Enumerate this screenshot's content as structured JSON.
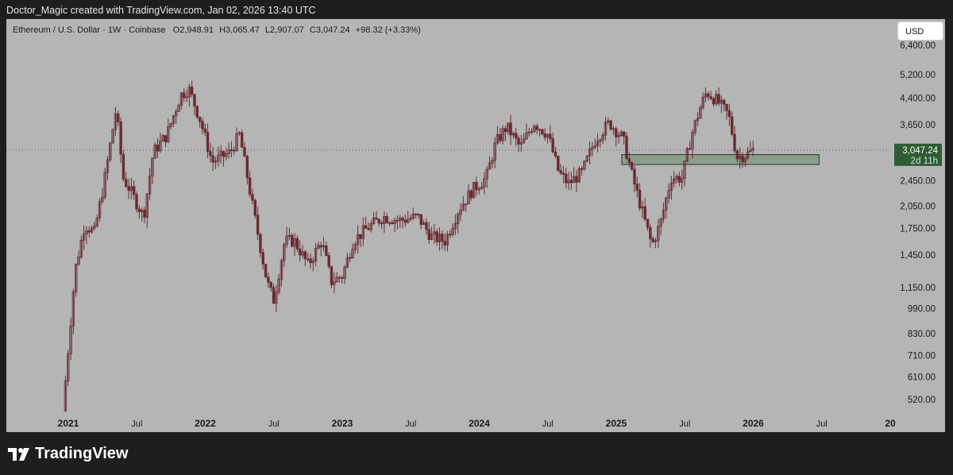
{
  "header": {
    "attribution": "Doctor_Magic created with TradingView.com, Jan 02, 2026 13:40 UTC"
  },
  "legend": {
    "symbol": "Ethereum / U.S. Dollar · 1W · Coinbase",
    "open": "O2,948.91",
    "high": "H3,065.47",
    "low": "L2,907.07",
    "close": "C3,047.24",
    "change": "+98.32 (+3.33%)"
  },
  "currency_button": "USD",
  "price_tag": {
    "price": "3,047.24",
    "countdown": "2d 11h"
  },
  "footer": {
    "brand": "TradingView"
  },
  "colors": {
    "chart_bg": "#b5b5b5",
    "candle": "#6b2a32",
    "zone_fill": "#8e9c8e",
    "zone_stroke": "#243824",
    "price_tag": "#2e5c34"
  },
  "chart_data": {
    "type": "candlestick",
    "symbol": "ETHUSD",
    "interval": "1W",
    "scale": "log",
    "y_tick_labels": [
      "6,400.00",
      "5,200.00",
      "4,400.00",
      "3,650.00",
      "2,450.00",
      "2,050.00",
      "1,750.00",
      "1,450.00",
      "1,150.00",
      "990.00",
      "830.00",
      "710.00",
      "610.00",
      "520.00"
    ],
    "x_tick_labels": [
      "2021",
      "Jul",
      "2022",
      "Jul",
      "2023",
      "Jul",
      "2024",
      "Jul",
      "2025",
      "Jul",
      "2026",
      "Jul",
      "20"
    ],
    "last_price": 3047.24,
    "support_zone": {
      "low": 2750,
      "high": 2950,
      "from": "2025-01",
      "to": "2026-04"
    },
    "price_path": [
      {
        "t": 2020.96,
        "p": 480
      },
      {
        "t": 2021.05,
        "p": 1300
      },
      {
        "t": 2021.12,
        "p": 1800
      },
      {
        "t": 2021.19,
        "p": 1700
      },
      {
        "t": 2021.26,
        "p": 2400
      },
      {
        "t": 2021.35,
        "p": 4100
      },
      {
        "t": 2021.4,
        "p": 2500
      },
      {
        "t": 2021.45,
        "p": 2300
      },
      {
        "t": 2021.55,
        "p": 1900
      },
      {
        "t": 2021.62,
        "p": 3000
      },
      {
        "t": 2021.72,
        "p": 3400
      },
      {
        "t": 2021.82,
        "p": 4500
      },
      {
        "t": 2021.88,
        "p": 4700
      },
      {
        "t": 2021.96,
        "p": 3800
      },
      {
        "t": 2022.05,
        "p": 2800
      },
      {
        "t": 2022.12,
        "p": 2900
      },
      {
        "t": 2022.18,
        "p": 3000
      },
      {
        "t": 2022.25,
        "p": 3400
      },
      {
        "t": 2022.35,
        "p": 2000
      },
      {
        "t": 2022.45,
        "p": 1200
      },
      {
        "t": 2022.5,
        "p": 1050
      },
      {
        "t": 2022.58,
        "p": 1600
      },
      {
        "t": 2022.65,
        "p": 1600
      },
      {
        "t": 2022.75,
        "p": 1350
      },
      {
        "t": 2022.85,
        "p": 1600
      },
      {
        "t": 2022.92,
        "p": 1200
      },
      {
        "t": 2023.0,
        "p": 1250
      },
      {
        "t": 2023.08,
        "p": 1600
      },
      {
        "t": 2023.18,
        "p": 1750
      },
      {
        "t": 2023.3,
        "p": 1900
      },
      {
        "t": 2023.42,
        "p": 1850
      },
      {
        "t": 2023.55,
        "p": 1900
      },
      {
        "t": 2023.65,
        "p": 1650
      },
      {
        "t": 2023.75,
        "p": 1600
      },
      {
        "t": 2023.85,
        "p": 2000
      },
      {
        "t": 2023.95,
        "p": 2300
      },
      {
        "t": 2024.05,
        "p": 2500
      },
      {
        "t": 2024.12,
        "p": 3200
      },
      {
        "t": 2024.2,
        "p": 3600
      },
      {
        "t": 2024.3,
        "p": 3100
      },
      {
        "t": 2024.4,
        "p": 3700
      },
      {
        "t": 2024.5,
        "p": 3400
      },
      {
        "t": 2024.58,
        "p": 2600
      },
      {
        "t": 2024.65,
        "p": 2400
      },
      {
        "t": 2024.75,
        "p": 2600
      },
      {
        "t": 2024.85,
        "p": 3300
      },
      {
        "t": 2024.95,
        "p": 3700
      },
      {
        "t": 2025.05,
        "p": 3300
      },
      {
        "t": 2025.12,
        "p": 2500
      },
      {
        "t": 2025.2,
        "p": 1900
      },
      {
        "t": 2025.26,
        "p": 1550
      },
      {
        "t": 2025.32,
        "p": 1800
      },
      {
        "t": 2025.4,
        "p": 2500
      },
      {
        "t": 2025.48,
        "p": 2500
      },
      {
        "t": 2025.55,
        "p": 3400
      },
      {
        "t": 2025.62,
        "p": 4200
      },
      {
        "t": 2025.66,
        "p": 4600
      },
      {
        "t": 2025.74,
        "p": 4300
      },
      {
        "t": 2025.82,
        "p": 3900
      },
      {
        "t": 2025.88,
        "p": 2900
      },
      {
        "t": 2025.95,
        "p": 2950
      },
      {
        "t": 2026.0,
        "p": 3047
      }
    ]
  }
}
